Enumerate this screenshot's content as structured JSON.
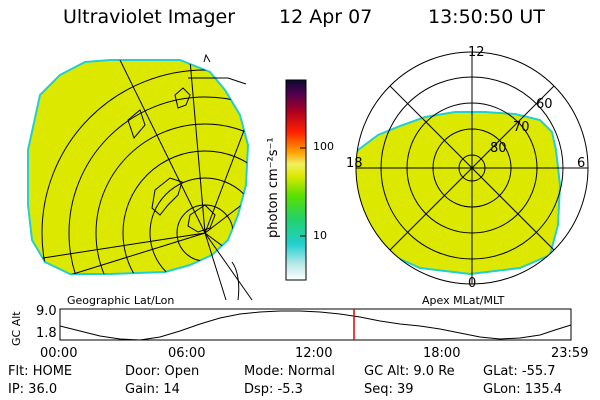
{
  "header": {
    "instrument": "Ultraviolet Imager",
    "date": "12 Apr 07",
    "time": "13:50:50 UT"
  },
  "colorbar": {
    "unit_label": "photon cm⁻²s⁻¹",
    "ticks": [
      "100",
      "10"
    ]
  },
  "polar_plot": {
    "mlt_labels": [
      "12",
      "18",
      "6",
      "0"
    ],
    "lat_labels": [
      "60",
      "70",
      "80"
    ]
  },
  "panel_labels": {
    "geographic": "Geographic Lat/Lon",
    "apex": "Apex MLat/MLT"
  },
  "altitude_plot": {
    "ylabel": "GC Alt",
    "yticks": [
      "9.0",
      "1.8"
    ],
    "xticks": [
      "00:00",
      "06:00",
      "12:00",
      "18:00",
      "23:59"
    ]
  },
  "status": {
    "flt": "Flt: HOME",
    "ip": "IP: 36.0",
    "door": "Door: Open",
    "gain": "Gain: 14",
    "mode": "Mode: Normal",
    "dsp": "Dsp:    -5.3",
    "gcalt": "GC Alt: 9.0 Re",
    "seq": "Seq: 39",
    "glat": "GLat:  -55.7",
    "glon": "GLon: 135.4"
  },
  "colors": {
    "aurora_fill": "#dde800",
    "aurora_edge": "#22cfd0",
    "current_time_marker": "#e00000"
  }
}
